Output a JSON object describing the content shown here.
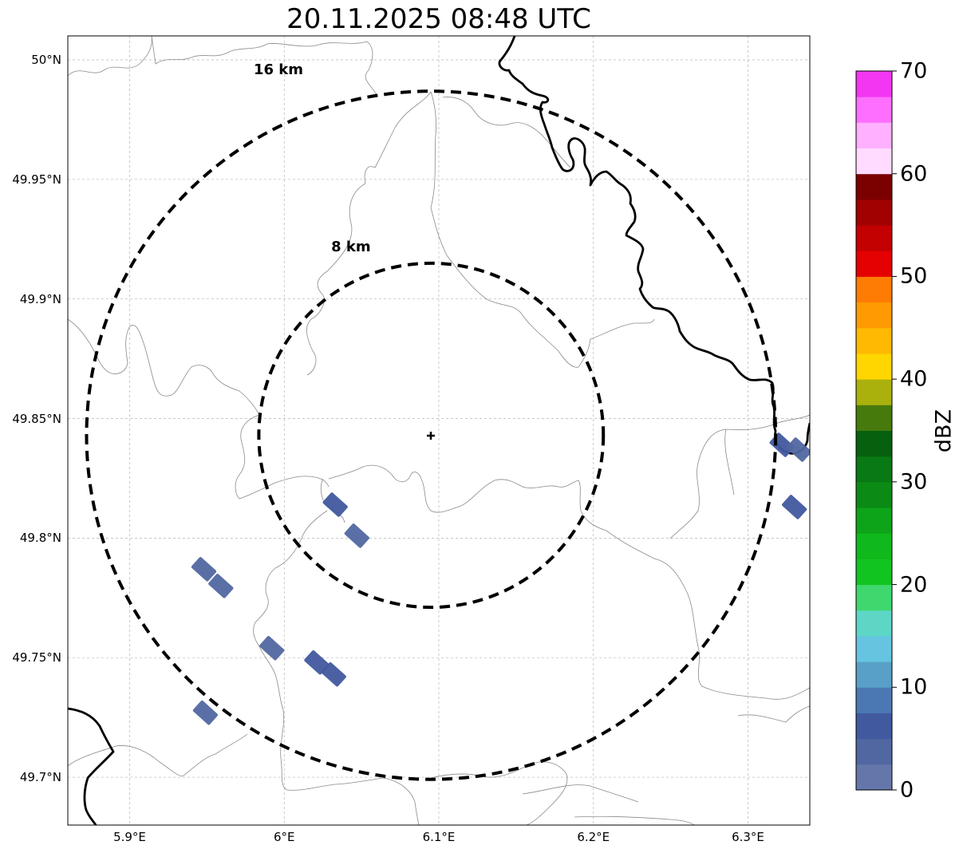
{
  "title": "20.11.2025 08:48 UTC",
  "map": {
    "lon_range": [
      5.86,
      6.34
    ],
    "lat_range": [
      49.68,
      50.01
    ],
    "radar_site": {
      "lon": 6.095,
      "lat": 49.843
    },
    "latitude_ticks": [
      {
        "value": 50.0,
        "label": "50°N"
      },
      {
        "value": 49.95,
        "label": "49.95°N"
      },
      {
        "value": 49.9,
        "label": "49.9°N"
      },
      {
        "value": 49.85,
        "label": "49.85°N"
      },
      {
        "value": 49.8,
        "label": "49.8°N"
      },
      {
        "value": 49.75,
        "label": "49.75°N"
      },
      {
        "value": 49.7,
        "label": "49.7°N"
      }
    ],
    "longitude_ticks": [
      {
        "value": 5.9,
        "label": "5.9°E"
      },
      {
        "value": 6.0,
        "label": "6°E"
      },
      {
        "value": 6.1,
        "label": "6.1°E"
      },
      {
        "value": 6.2,
        "label": "6.2°E"
      },
      {
        "value": 6.3,
        "label": "6.3°E"
      }
    ],
    "range_rings": [
      {
        "radius_km": 8,
        "label": "8 km"
      },
      {
        "radius_km": 16,
        "label": "16 km"
      }
    ],
    "gridlines": true,
    "echoes": [
      {
        "lon": 6.033,
        "lat": 49.814,
        "dbz": 6
      },
      {
        "lon": 6.047,
        "lat": 49.801,
        "dbz": 4
      },
      {
        "lon": 5.948,
        "lat": 49.787,
        "dbz": 3
      },
      {
        "lon": 5.959,
        "lat": 49.78,
        "dbz": 3
      },
      {
        "lon": 5.992,
        "lat": 49.754,
        "dbz": 4
      },
      {
        "lon": 6.021,
        "lat": 49.748,
        "dbz": 6
      },
      {
        "lon": 6.032,
        "lat": 49.743,
        "dbz": 6
      },
      {
        "lon": 5.949,
        "lat": 49.727,
        "dbz": 3
      },
      {
        "lon": 6.322,
        "lat": 49.839,
        "dbz": 7
      },
      {
        "lon": 6.333,
        "lat": 49.837,
        "dbz": 4
      },
      {
        "lon": 6.33,
        "lat": 49.813,
        "dbz": 7
      }
    ]
  },
  "colorbar": {
    "label": "dBZ",
    "min": 0,
    "max": 70,
    "tick_labels": [
      "0",
      "10",
      "20",
      "30",
      "40",
      "50",
      "60",
      "70"
    ],
    "colors": [
      "#6577aa",
      "#5167a1",
      "#41599f",
      "#4b78b3",
      "#58a0c7",
      "#65c4e0",
      "#5dd6c6",
      "#3fd86e",
      "#12c420",
      "#0fb91b",
      "#0ea41a",
      "#0b8b16",
      "#097914",
      "#06600e",
      "#477a0d",
      "#aab10c",
      "#ffd600",
      "#ffb901",
      "#ff9a02",
      "#ff7c04",
      "#e50101",
      "#c30101",
      "#a10101",
      "#7b0101",
      "#ffdcff",
      "#ffb0ff",
      "#ff6fff",
      "#f236f2"
    ]
  }
}
